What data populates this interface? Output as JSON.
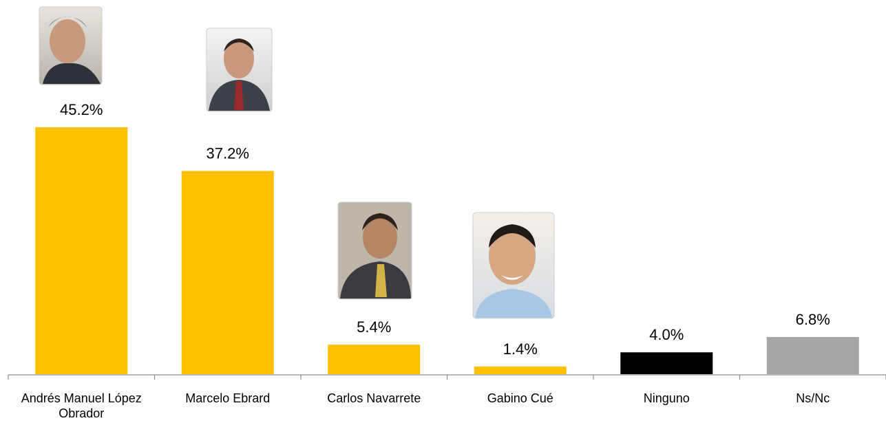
{
  "chart_data": {
    "type": "bar",
    "categories": [
      "Andrés Manuel López Obrador",
      "Marcelo Ebrard",
      "Carlos Navarrete",
      "Gabino Cué",
      "Ninguno",
      "Ns/Nc"
    ],
    "values": [
      45.2,
      37.2,
      5.4,
      1.4,
      4.0,
      6.8
    ],
    "value_labels": [
      "45.2%",
      "37.2%",
      "5.4%",
      "1.4%",
      "4.0%",
      "6.8%"
    ],
    "colors": [
      "#ffc000",
      "#ffc000",
      "#ffc000",
      "#ffc000",
      "#000000",
      "#a6a6a6"
    ]
  }
}
